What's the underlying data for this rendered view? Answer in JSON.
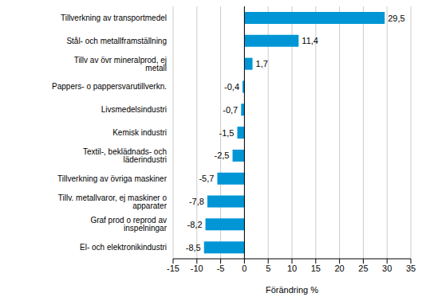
{
  "chart_data": {
    "type": "bar",
    "orientation": "horizontal",
    "x_label": "Förändring %",
    "categories": [
      "Tillverkning av transportmedel",
      "Stål- och metallframställning",
      "Tillv av övr mineralprod, ej metall",
      "Pappers- o pappersvarutillverkn.",
      "Livsmedelsindustri",
      "Kemisk industri",
      "Textil-, beklädnads- och läderindustri",
      "Tillverkning av övriga maskiner",
      "Tillv. metallvaror, ej maskiner o apparater",
      "Graf prod o reprod av inspelningar",
      "El- och elektronikindustri"
    ],
    "values": [
      29.5,
      11.4,
      1.7,
      -0.4,
      -0.7,
      -1.5,
      -2.5,
      -5.7,
      -7.8,
      -8.2,
      -8.5
    ],
    "value_labels": [
      "29,5",
      "11,4",
      "1,7",
      "-0,4",
      "-0,7",
      "-1,5",
      "-2,5",
      "-5,7",
      "-7,8",
      "-8,2",
      "-8,5"
    ],
    "data_labels": true,
    "color": "#0096d6",
    "xlim": [
      -15,
      35
    ],
    "xticks": [
      -15,
      -10,
      -5,
      0,
      5,
      10,
      15,
      20,
      25,
      30,
      35
    ],
    "grid": true
  }
}
